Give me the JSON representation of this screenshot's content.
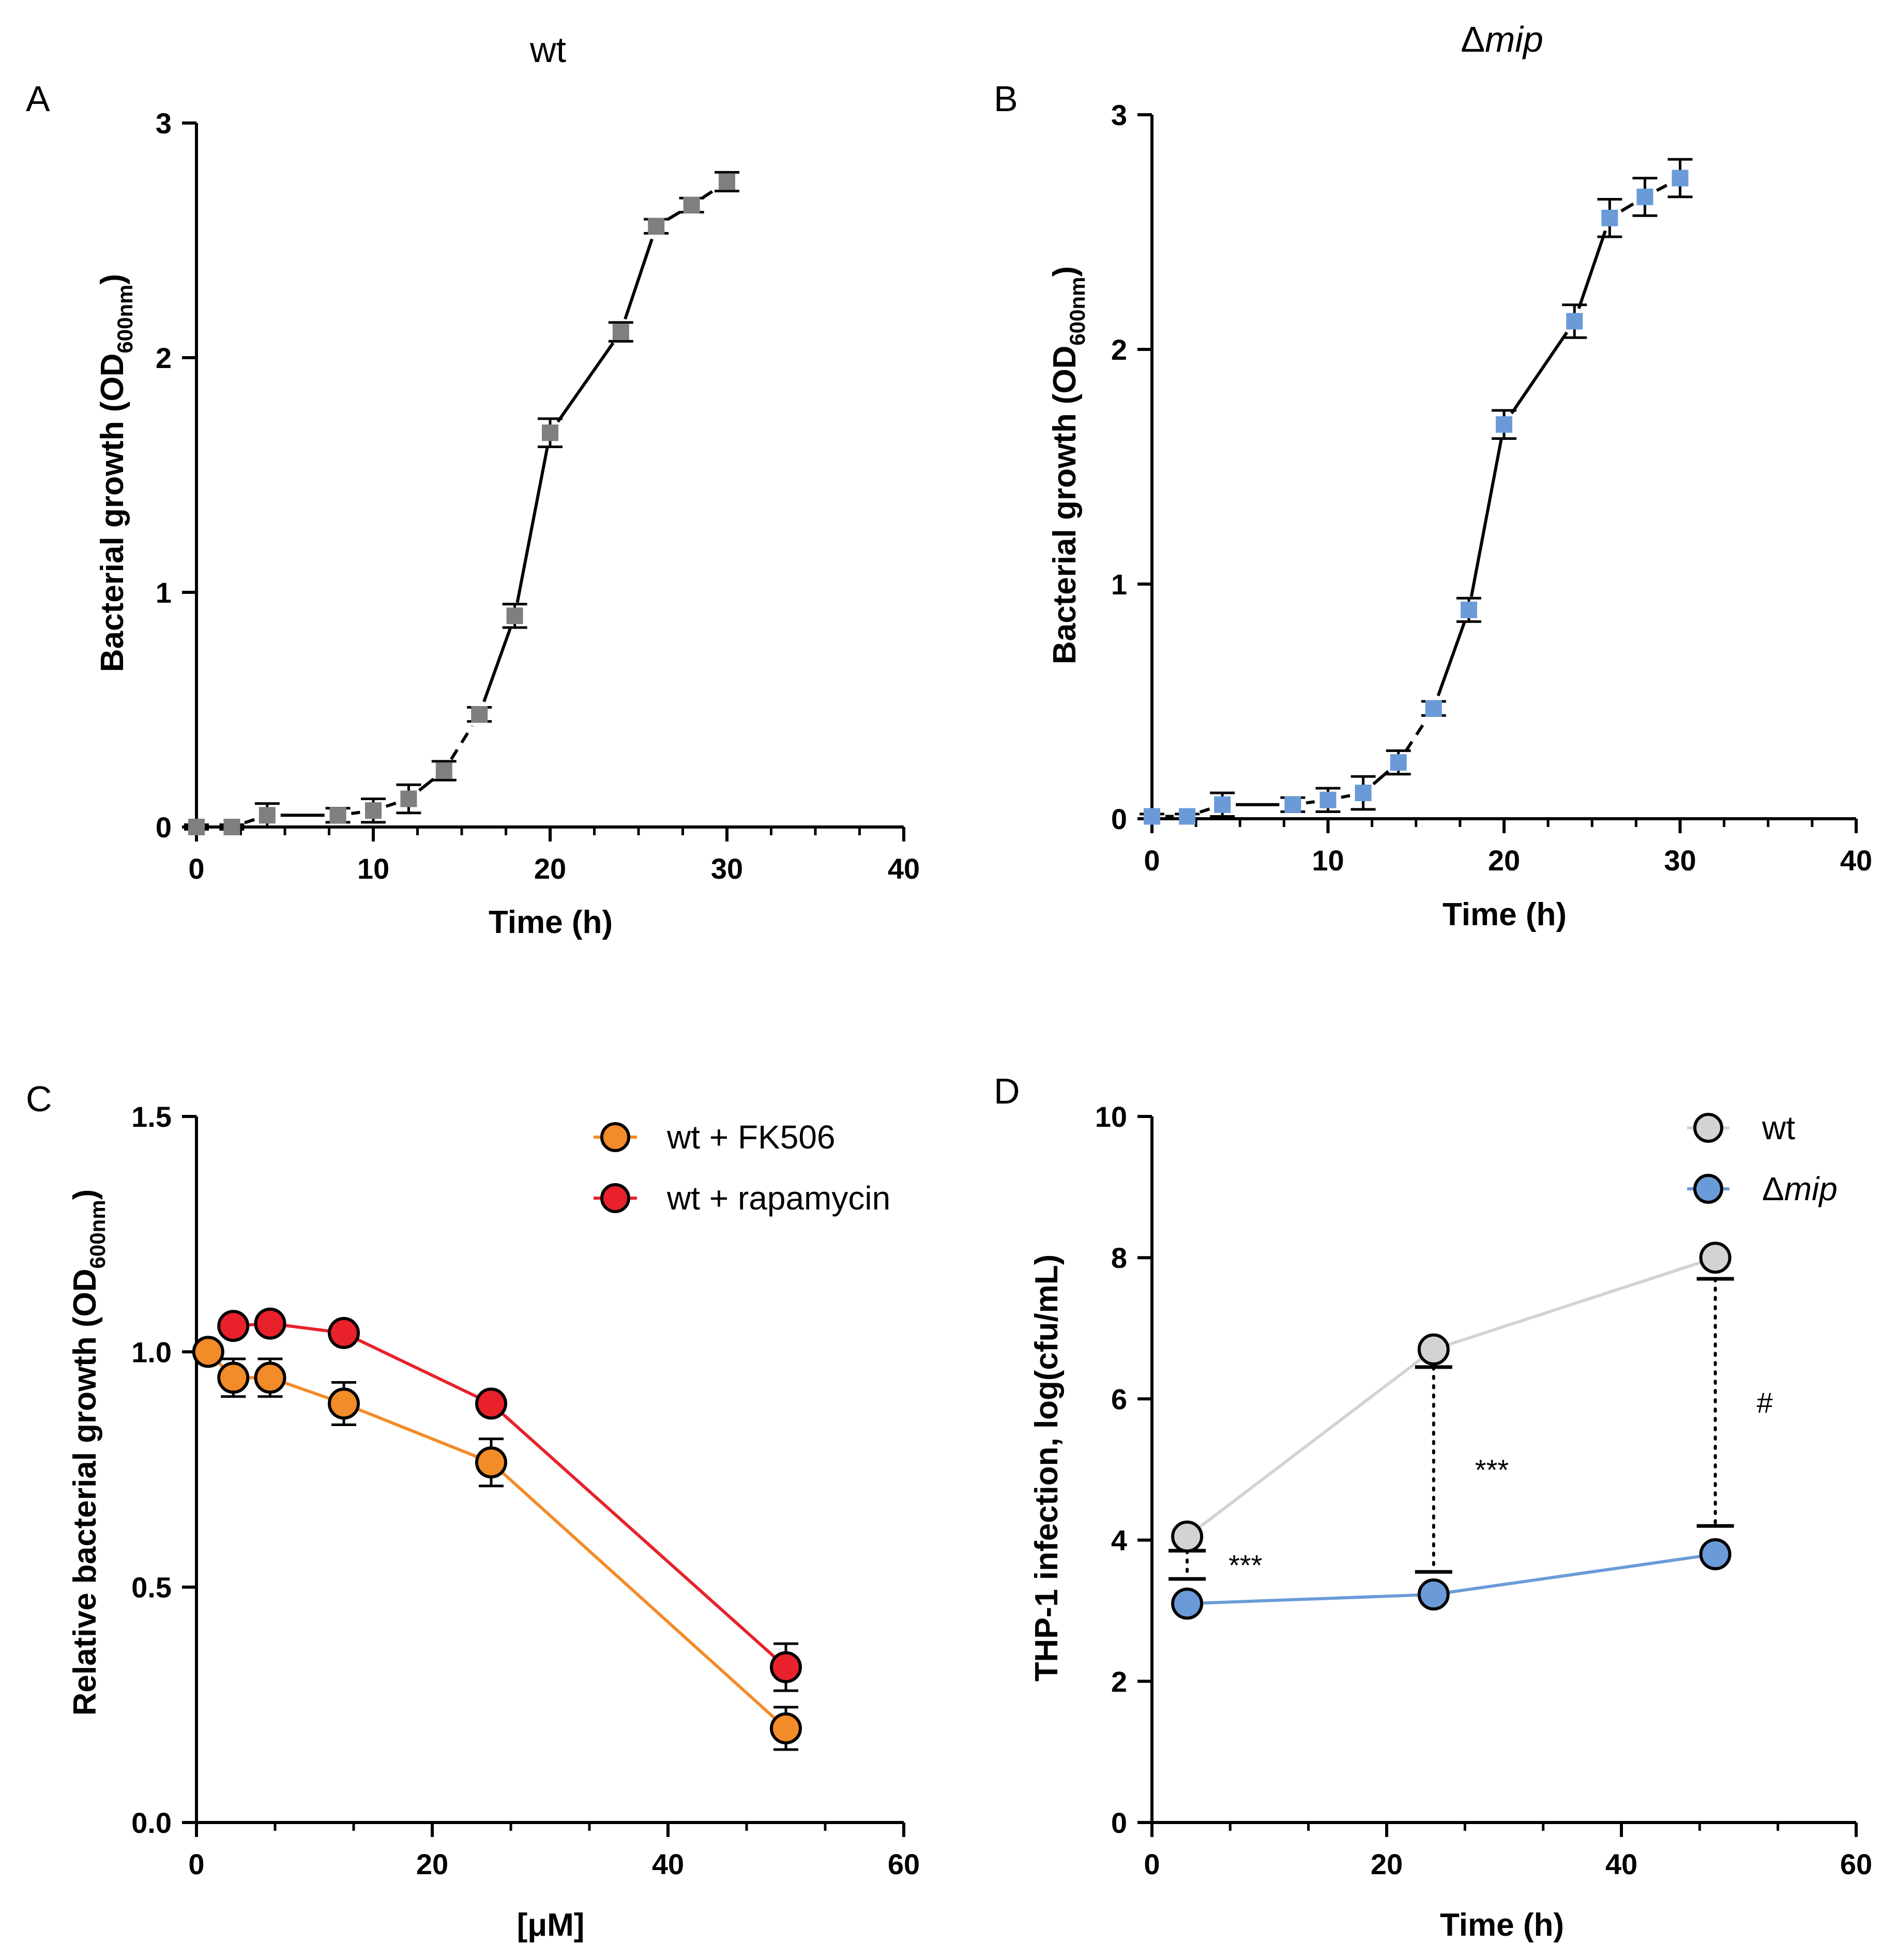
{
  "figure": {
    "panel_letters": [
      "A",
      "B",
      "C",
      "D"
    ],
    "subscript": "600nm"
  },
  "chart_data": [
    {
      "panel": "A",
      "type": "line",
      "title": "wt",
      "xlabel": "Time (h)",
      "ylabel": "Bacterial growth (OD",
      "ylabel_sub": "600nm",
      "ylabel_close": ")",
      "xlim": [
        0,
        40
      ],
      "ylim": [
        0,
        3
      ],
      "xticks": [
        "0",
        "10",
        "20",
        "30",
        "40"
      ],
      "yticks": [
        "0",
        "1",
        "2",
        "3"
      ],
      "marker": "square",
      "marker_color": "#7f7f7f",
      "series": [
        {
          "name": "wt",
          "x": [
            0,
            2,
            4,
            8,
            10,
            12,
            14,
            16,
            18,
            20,
            24,
            26,
            28,
            30
          ],
          "y": [
            0.0,
            0.0,
            0.05,
            0.05,
            0.07,
            0.12,
            0.24,
            0.48,
            0.9,
            1.68,
            2.11,
            2.56,
            2.65,
            2.75
          ],
          "err": [
            0.01,
            0.01,
            0.05,
            0.03,
            0.05,
            0.06,
            0.04,
            0.03,
            0.05,
            0.06,
            0.04,
            0.03,
            0.03,
            0.04
          ]
        }
      ]
    },
    {
      "panel": "B",
      "type": "line",
      "title": "Δmip",
      "title_prefix": "Δ",
      "title_italic": "mip",
      "xlabel": "Time (h)",
      "ylabel": "Bacterial growth (OD",
      "ylabel_sub": "600nm",
      "ylabel_close": ")",
      "xlim": [
        0,
        40
      ],
      "ylim": [
        0,
        3
      ],
      "xticks": [
        "0",
        "10",
        "20",
        "30",
        "40"
      ],
      "yticks": [
        "0",
        "1",
        "2",
        "3"
      ],
      "marker": "square",
      "marker_color": "#6a9bd8",
      "series": [
        {
          "name": "Δmip",
          "x": [
            0,
            2,
            4,
            8,
            10,
            12,
            14,
            16,
            18,
            20,
            24,
            26,
            28,
            30
          ],
          "y": [
            0.01,
            0.01,
            0.06,
            0.06,
            0.08,
            0.11,
            0.24,
            0.47,
            0.89,
            1.68,
            2.12,
            2.56,
            2.65,
            2.73
          ],
          "err": [
            0.01,
            0.01,
            0.05,
            0.03,
            0.05,
            0.07,
            0.05,
            0.03,
            0.05,
            0.06,
            0.07,
            0.08,
            0.08,
            0.08
          ]
        }
      ]
    },
    {
      "panel": "C",
      "type": "line",
      "xlabel": "[μM]",
      "ylabel": "Relative bacterial growth (OD",
      "ylabel_sub": "600nm",
      "ylabel_close": ")",
      "xlim": [
        0,
        60
      ],
      "ylim": [
        0,
        1.5
      ],
      "xticks": [
        "0",
        "20",
        "40",
        "60"
      ],
      "yticks": [
        "0.0",
        "0.5",
        "1.0",
        "1.5"
      ],
      "legend": "top-right",
      "series": [
        {
          "name": "wt + FK506",
          "color": "#f28c28",
          "x": [
            1,
            3.125,
            6.25,
            12.5,
            25,
            50
          ],
          "y": [
            1.0,
            0.945,
            0.945,
            0.89,
            0.765,
            0.2
          ],
          "err": [
            0.0,
            0.04,
            0.04,
            0.045,
            0.05,
            0.045
          ]
        },
        {
          "name": "wt + rapamycin",
          "color": "#e8212b",
          "x": [
            3.125,
            6.25,
            12.5,
            25,
            50
          ],
          "y": [
            1.055,
            1.06,
            1.04,
            0.89,
            0.33
          ],
          "err": [
            0.0,
            0.0,
            0.0,
            0.0,
            0.05
          ]
        }
      ]
    },
    {
      "panel": "D",
      "type": "line",
      "xlabel": "Time (h)",
      "ylabel": "THP-1 infection, log(cfu/mL)",
      "xlim": [
        0,
        60
      ],
      "ylim": [
        0,
        10
      ],
      "xticks": [
        "0",
        "20",
        "40",
        "60"
      ],
      "yticks": [
        "0",
        "2",
        "4",
        "6",
        "8",
        "10"
      ],
      "legend": "top-right",
      "series": [
        {
          "name": "wt",
          "color": "#d3d3d3",
          "x": [
            3,
            24,
            48
          ],
          "y": [
            4.05,
            6.7,
            8.0
          ]
        },
        {
          "name": "Δmip",
          "name_prefix": "Δ",
          "name_italic": "mip",
          "color": "#6a9bd8",
          "x": [
            3,
            24,
            48
          ],
          "y": [
            3.1,
            3.23,
            3.8
          ]
        }
      ],
      "annotations": [
        {
          "x": 3,
          "low": 3.45,
          "high": 3.85,
          "label": "***"
        },
        {
          "x": 24,
          "low": 3.55,
          "high": 6.45,
          "label": "***"
        },
        {
          "x": 48,
          "low": 4.2,
          "high": 7.7,
          "label": "#"
        }
      ]
    }
  ]
}
